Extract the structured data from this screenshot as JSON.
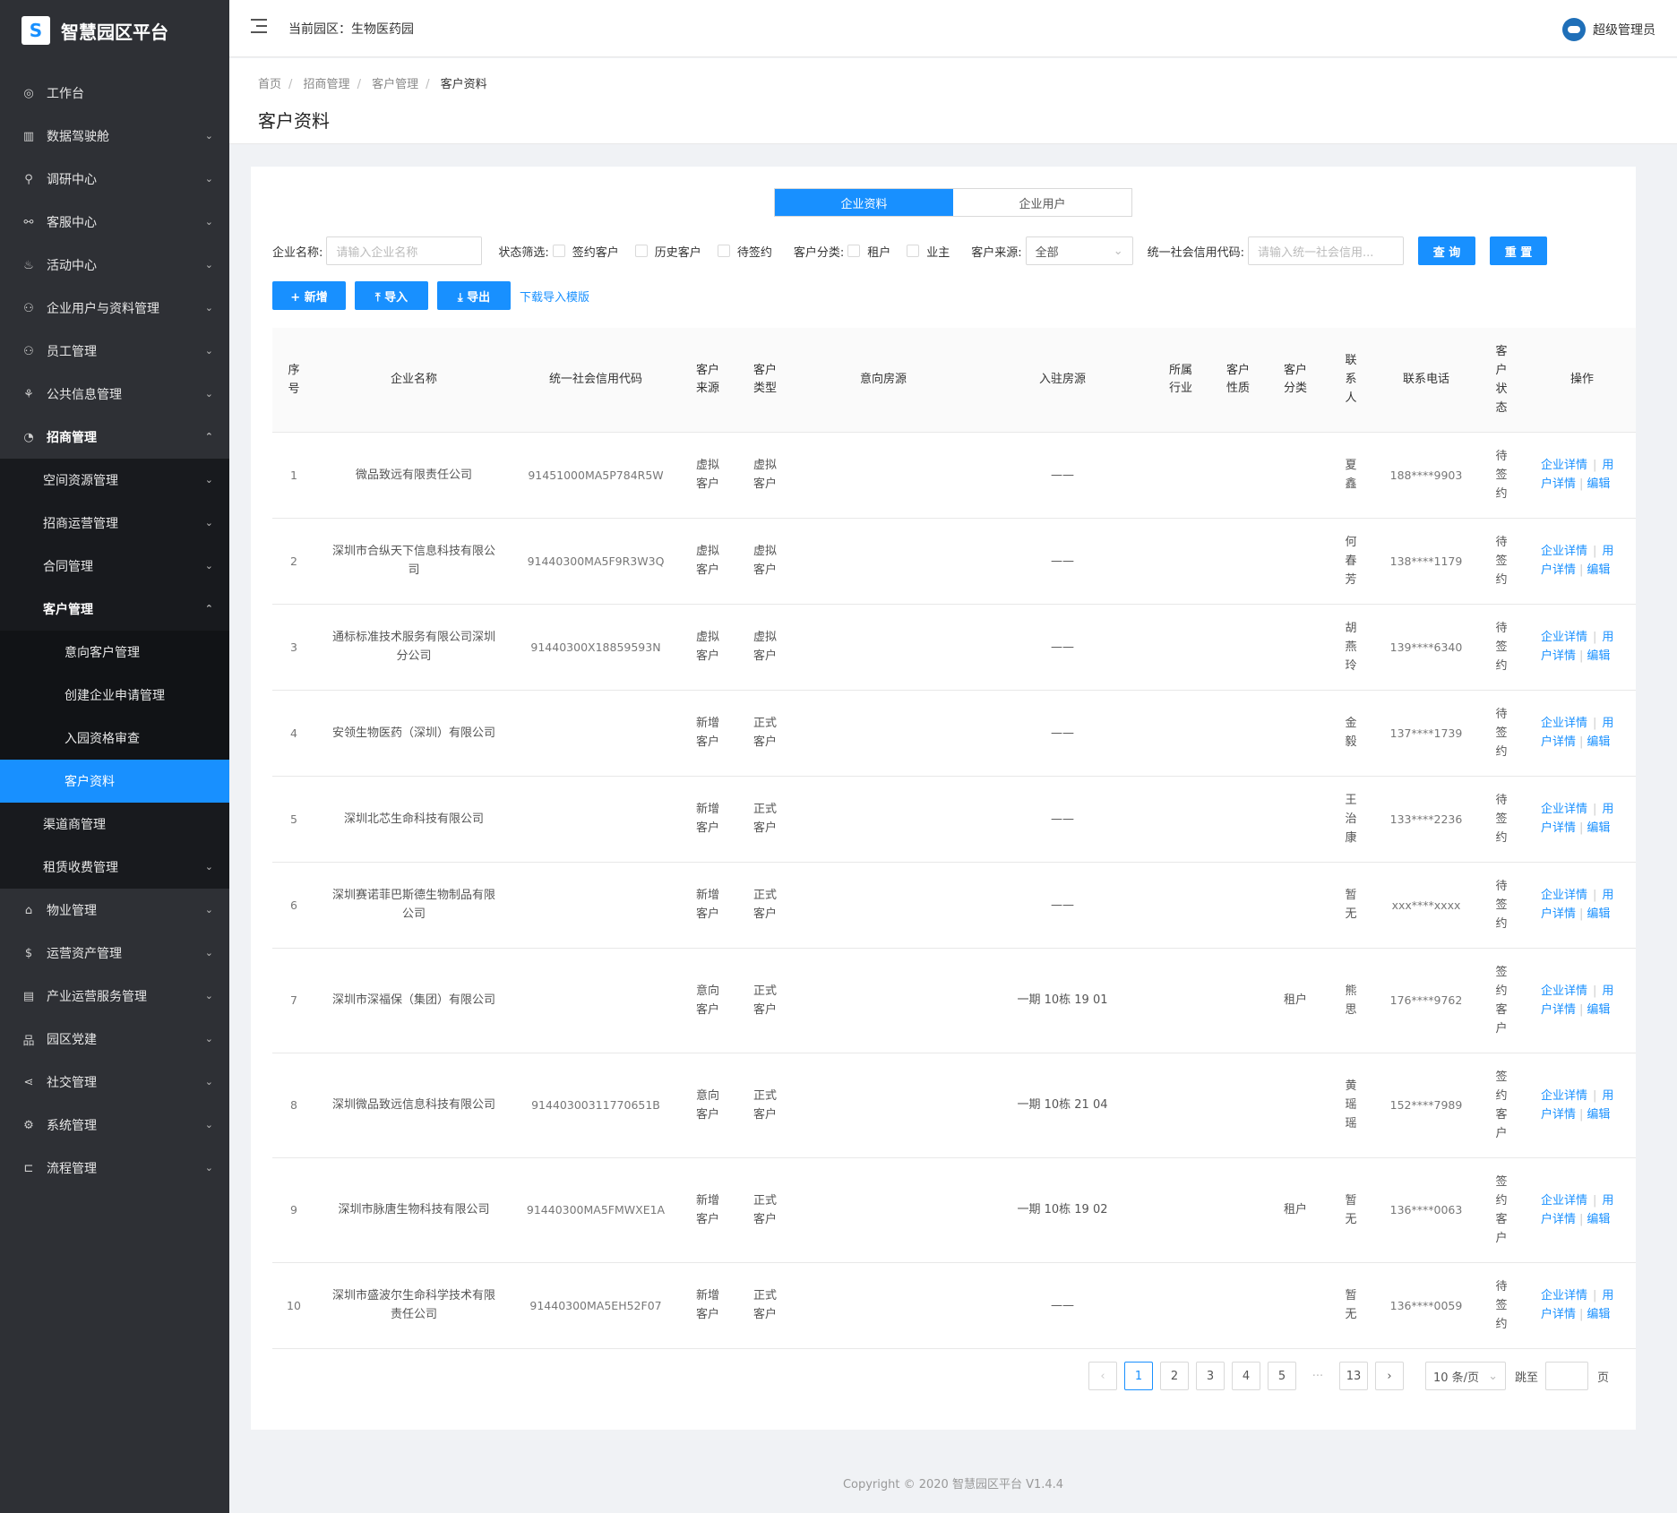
{
  "brand": {
    "name": "智慧园区平台",
    "logo_letter": "S"
  },
  "topbar": {
    "park_label": "当前园区：",
    "park_name": "生物医药园",
    "user": "超级管理员"
  },
  "sidebar": {
    "items": [
      {
        "label": "工作台",
        "icon": "dashboard-icon",
        "glyph": "◎",
        "level": 1,
        "arrow": ""
      },
      {
        "label": "数据驾驶舱",
        "icon": "bar-chart-icon",
        "glyph": "▥",
        "level": 1,
        "arrow": "⌄"
      },
      {
        "label": "调研中心",
        "icon": "search-icon",
        "glyph": "⚲",
        "level": 1,
        "arrow": "⌄"
      },
      {
        "label": "客服中心",
        "icon": "link-icon",
        "glyph": "⚯",
        "level": 1,
        "arrow": "⌄"
      },
      {
        "label": "活动中心",
        "icon": "flame-icon",
        "glyph": "♨",
        "level": 1,
        "arrow": "⌄"
      },
      {
        "label": "企业用户与资料管理",
        "icon": "team-icon",
        "glyph": "⚇",
        "level": 1,
        "arrow": "⌄"
      },
      {
        "label": "员工管理",
        "icon": "staff-icon",
        "glyph": "⚇",
        "level": 1,
        "arrow": "⌄"
      },
      {
        "label": "公共信息管理",
        "icon": "share-icon",
        "glyph": "⚘",
        "level": 1,
        "arrow": "⌄"
      },
      {
        "label": "招商管理",
        "icon": "pie-chart-icon",
        "glyph": "◔",
        "level": 1,
        "arrow": "⌃",
        "open": true
      },
      {
        "label": "空间资源管理",
        "icon": "",
        "glyph": "",
        "level": 2,
        "arrow": "⌄"
      },
      {
        "label": "招商运营管理",
        "icon": "",
        "glyph": "",
        "level": 2,
        "arrow": "⌄"
      },
      {
        "label": "合同管理",
        "icon": "",
        "glyph": "",
        "level": 2,
        "arrow": "⌄"
      },
      {
        "label": "客户管理",
        "icon": "",
        "glyph": "",
        "level": 2,
        "arrow": "⌃",
        "open": true
      },
      {
        "label": "意向客户管理",
        "icon": "",
        "glyph": "",
        "level": 3,
        "arrow": ""
      },
      {
        "label": "创建企业申请管理",
        "icon": "",
        "glyph": "",
        "level": 3,
        "arrow": ""
      },
      {
        "label": "入园资格审查",
        "icon": "",
        "glyph": "",
        "level": 3,
        "arrow": ""
      },
      {
        "label": "客户资料",
        "icon": "",
        "glyph": "",
        "level": 3,
        "arrow": "",
        "active": true
      },
      {
        "label": "渠道商管理",
        "icon": "",
        "glyph": "",
        "level": 2,
        "arrow": ""
      },
      {
        "label": "租赁收费管理",
        "icon": "",
        "glyph": "",
        "level": 2,
        "arrow": "⌄"
      },
      {
        "label": "物业管理",
        "icon": "home-icon",
        "glyph": "⌂",
        "level": 1,
        "arrow": "⌄"
      },
      {
        "label": "运营资产管理",
        "icon": "coin-icon",
        "glyph": "$",
        "level": 1,
        "arrow": "⌄"
      },
      {
        "label": "产业运营服务管理",
        "icon": "document-icon",
        "glyph": "▤",
        "level": 1,
        "arrow": "⌄"
      },
      {
        "label": "园区党建",
        "icon": "flag-icon",
        "glyph": "品",
        "level": 1,
        "arrow": "⌄"
      },
      {
        "label": "社交管理",
        "icon": "share-nodes-icon",
        "glyph": "⋖",
        "level": 1,
        "arrow": "⌄"
      },
      {
        "label": "系统管理",
        "icon": "gear-icon",
        "glyph": "⚙",
        "level": 1,
        "arrow": "⌄"
      },
      {
        "label": "流程管理",
        "icon": "flow-icon",
        "glyph": "⊏",
        "level": 1,
        "arrow": "⌄"
      }
    ]
  },
  "breadcrumb": [
    "首页",
    "招商管理",
    "客户管理",
    "客户资料"
  ],
  "page_title": "客户资料",
  "tabs": [
    {
      "label": "企业资料",
      "active": true
    },
    {
      "label": "企业用户",
      "active": false
    }
  ],
  "filters": {
    "company_label": "企业名称:",
    "company_placeholder": "请输入企业名称",
    "status_label": "状态筛选:",
    "status_options": [
      "签约客户",
      "历史客户",
      "待签约"
    ],
    "category_label": "客户分类:",
    "category_options": [
      "租户",
      "业主"
    ],
    "source_label": "客户来源:",
    "source_value": "全部",
    "credit_label": "统一社会信用代码:",
    "credit_placeholder": "请输入统一社会信用...",
    "query": "查 询",
    "reset": "重 置"
  },
  "actions": {
    "add": "+ 新增",
    "import": "⤒ 导入",
    "export": "⤓ 导出",
    "template": "下载导入模版"
  },
  "table": {
    "headers": [
      "序号",
      "企业名称",
      "统一社会信用代码",
      "客户来源",
      "客户类型",
      "意向房源",
      "入驻房源",
      "所属行业",
      "客户性质",
      "客户分类",
      "联系人",
      "联系电话",
      "客户状态",
      "操作"
    ],
    "rows": [
      {
        "no": "1",
        "name": "微品致远有限责任公司",
        "code": "91451000MA5P784R5W",
        "source": "虚拟客户",
        "type": "虚拟客户",
        "intent": "",
        "room": "——",
        "industry": "",
        "nature": "",
        "cat": "",
        "contact": "夏鑫",
        "phone": "188****9903",
        "status": "待签约"
      },
      {
        "no": "2",
        "name": "深圳市合纵天下信息科技有限公司",
        "code": "91440300MA5F9R3W3Q",
        "source": "虚拟客户",
        "type": "虚拟客户",
        "intent": "",
        "room": "——",
        "industry": "",
        "nature": "",
        "cat": "",
        "contact": "何春芳",
        "phone": "138****1179",
        "status": "待签约"
      },
      {
        "no": "3",
        "name": "通标标准技术服务有限公司深圳分公司",
        "code": "91440300X18859593N",
        "source": "虚拟客户",
        "type": "虚拟客户",
        "intent": "",
        "room": "——",
        "industry": "",
        "nature": "",
        "cat": "",
        "contact": "胡燕玲",
        "phone": "139****6340",
        "status": "待签约"
      },
      {
        "no": "4",
        "name": "安领生物医药（深圳）有限公司",
        "code": "",
        "source": "新增客户",
        "type": "正式客户",
        "intent": "",
        "room": "——",
        "industry": "",
        "nature": "",
        "cat": "",
        "contact": "金毅",
        "phone": "137****1739",
        "status": "待签约"
      },
      {
        "no": "5",
        "name": "深圳北芯生命科技有限公司",
        "code": "",
        "source": "新增客户",
        "type": "正式客户",
        "intent": "",
        "room": "——",
        "industry": "",
        "nature": "",
        "cat": "",
        "contact": "王治康",
        "phone": "133****2236",
        "status": "待签约"
      },
      {
        "no": "6",
        "name": "深圳赛诺菲巴斯德生物制品有限公司",
        "code": "",
        "source": "新增客户",
        "type": "正式客户",
        "intent": "",
        "room": "——",
        "industry": "",
        "nature": "",
        "cat": "",
        "contact": "暂无",
        "phone": "xxx****xxxx",
        "status": "待签约"
      },
      {
        "no": "7",
        "name": "深圳市深福保（集团）有限公司",
        "code": "",
        "source": "意向客户",
        "type": "正式客户",
        "intent": "",
        "room": "一期 10栋 19 01",
        "industry": "",
        "nature": "",
        "cat": "租户",
        "contact": "熊思",
        "phone": "176****9762",
        "status": "签约客户"
      },
      {
        "no": "8",
        "name": "深圳微品致远信息科技有限公司",
        "code": "91440300311770651B",
        "source": "意向客户",
        "type": "正式客户",
        "intent": "",
        "room": "一期 10栋 21 04",
        "industry": "",
        "nature": "",
        "cat": "",
        "contact": "黄瑶瑶",
        "phone": "152****7989",
        "status": "签约客户"
      },
      {
        "no": "9",
        "name": "深圳市脉唐生物科技有限公司",
        "code": "91440300MA5FMWXE1A",
        "source": "新增客户",
        "type": "正式客户",
        "intent": "",
        "room": "一期 10栋 19 02",
        "industry": "",
        "nature": "",
        "cat": "租户",
        "contact": "暂无",
        "phone": "136****0063",
        "status": "签约客户"
      },
      {
        "no": "10",
        "name": "深圳市盛波尔生命科学技术有限责任公司",
        "code": "91440300MA5EH52F07",
        "source": "新增客户",
        "type": "正式客户",
        "intent": "",
        "room": "——",
        "industry": "",
        "nature": "",
        "cat": "",
        "contact": "暂无",
        "phone": "136****0059",
        "status": "待签约"
      }
    ],
    "op_detail": "企业详情",
    "op_sep": "|",
    "op_user": "用户详情",
    "op_edit": "编辑"
  },
  "pagination": {
    "prev": "‹",
    "pages": [
      "1",
      "2",
      "3",
      "4",
      "5"
    ],
    "ellipsis": "···",
    "last": "13",
    "next": "›",
    "size": "10 条/页",
    "jump": "跳至",
    "page_unit": "页",
    "current": "1"
  },
  "footer": "Copyright © 2020 智慧园区平台 V1.4.4"
}
